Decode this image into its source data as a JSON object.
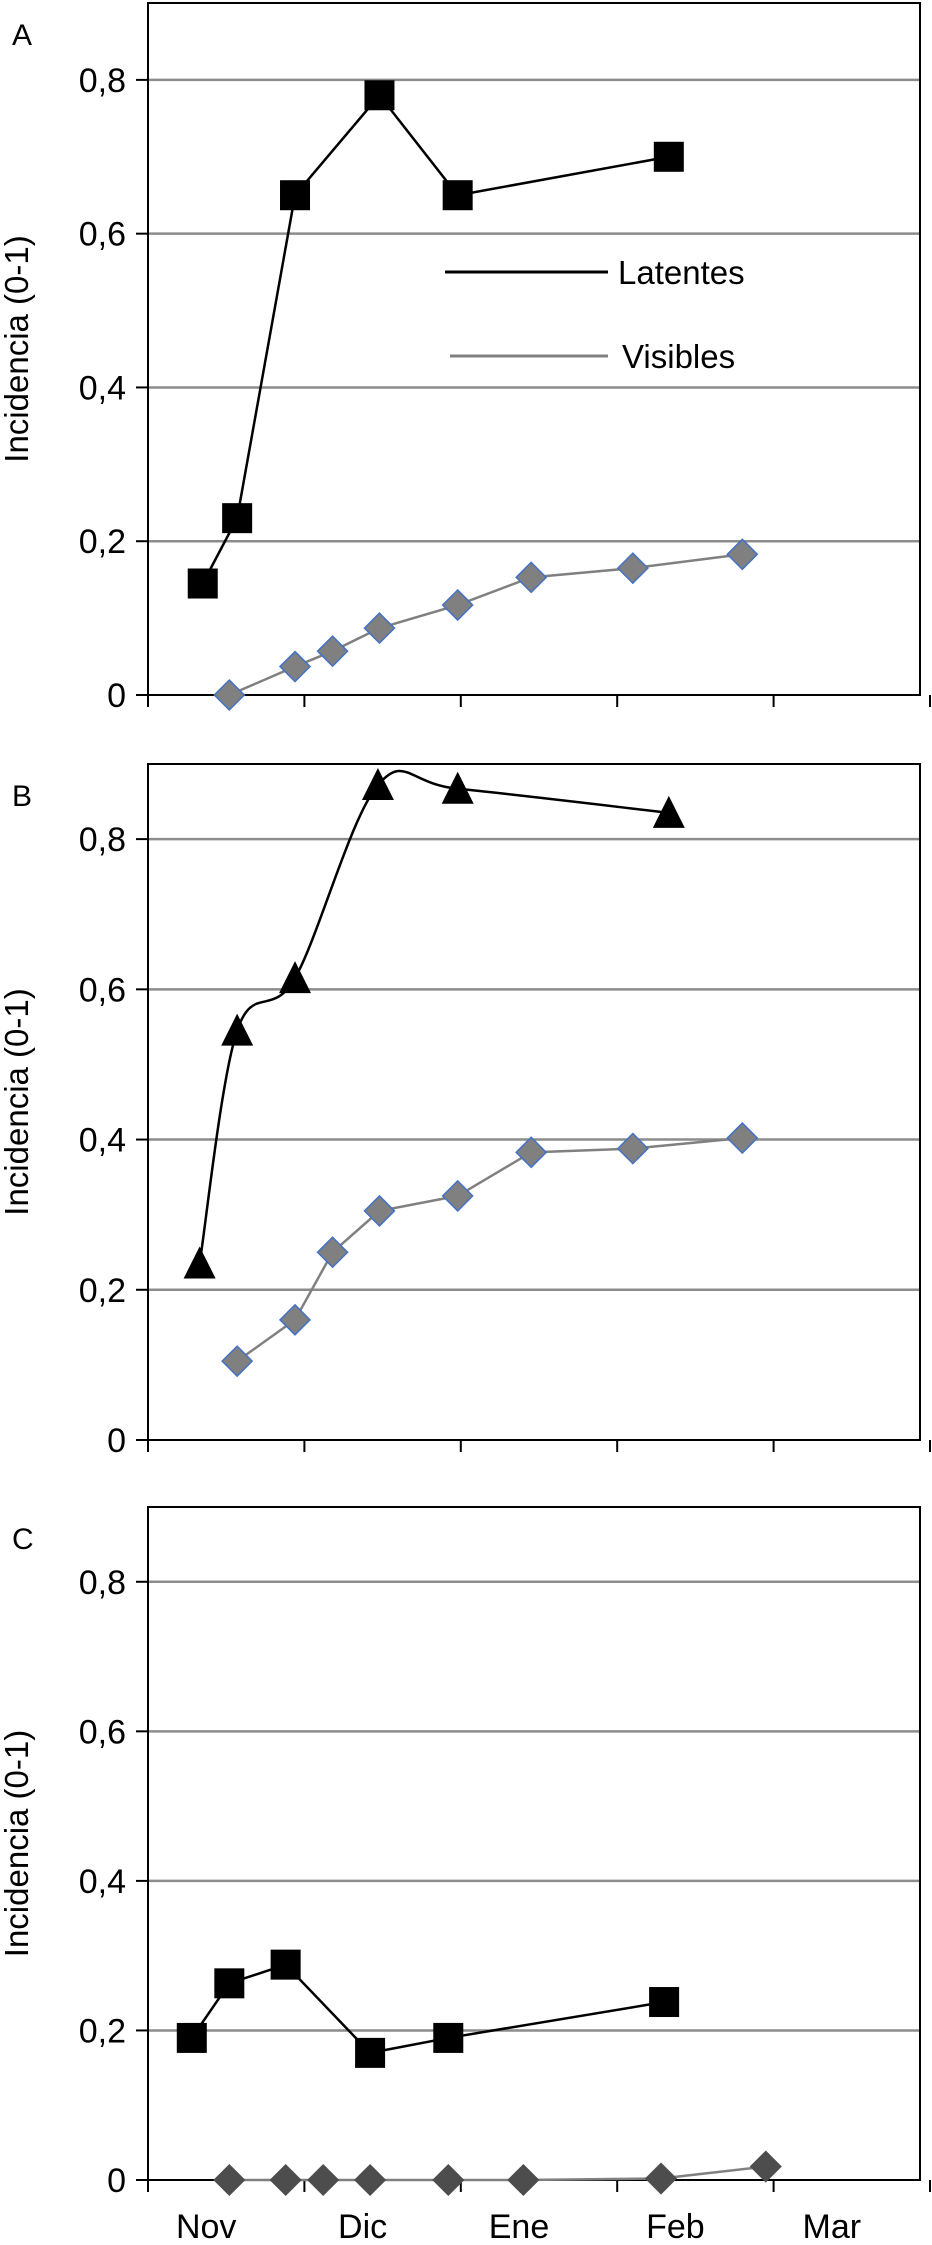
{
  "chart_data": [
    {
      "type": "line",
      "panel_label": "A",
      "ylabel": "Incidencia (0-1)",
      "xlabel": "",
      "x_months": [
        "Nov",
        "Dic",
        "Ene",
        "Feb",
        "Mar"
      ],
      "ylim": [
        0,
        0.9
      ],
      "yticks": [
        "0",
        "0,2",
        "0,4",
        "0,6",
        "0,8"
      ],
      "ytick_values": [
        0,
        0.2,
        0.4,
        0.6,
        0.8
      ],
      "grid": true,
      "legend": {
        "placement": "top-right",
        "entries": [
          "Latentes",
          "Visibles"
        ]
      },
      "series": [
        {
          "name": "Latentes",
          "marker": "square",
          "color": "#000000",
          "smooth": false,
          "points": [
            [
              0.35,
              0.145
            ],
            [
              0.57,
              0.23
            ],
            [
              0.94,
              0.65
            ],
            [
              1.48,
              0.78
            ],
            [
              1.98,
              0.65
            ],
            [
              3.33,
              0.7
            ]
          ]
        },
        {
          "name": "Visibles",
          "marker": "diamond",
          "color": "#808080",
          "smooth": false,
          "points": [
            [
              0.52,
              0.0
            ],
            [
              0.94,
              0.037
            ],
            [
              1.18,
              0.057
            ],
            [
              1.48,
              0.087
            ],
            [
              1.98,
              0.117
            ],
            [
              2.45,
              0.153
            ],
            [
              3.1,
              0.165
            ],
            [
              3.8,
              0.183
            ]
          ]
        }
      ]
    },
    {
      "type": "line",
      "panel_label": "B",
      "ylabel": "Incidencia (0-1)",
      "xlabel": "",
      "x_months": [
        "Nov",
        "Dic",
        "Ene",
        "Feb",
        "Mar"
      ],
      "ylim": [
        0,
        0.9
      ],
      "yticks": [
        "0",
        "0,2",
        "0,4",
        "0,6",
        "0,8"
      ],
      "ytick_values": [
        0,
        0.2,
        0.4,
        0.6,
        0.8
      ],
      "grid": true,
      "series": [
        {
          "name": "",
          "marker": "triangle",
          "color": "#000000",
          "smooth": true,
          "points": [
            [
              0.33,
              0.235
            ],
            [
              0.57,
              0.545
            ],
            [
              0.94,
              0.615
            ],
            [
              1.47,
              0.872
            ],
            [
              1.98,
              0.867
            ],
            [
              3.33,
              0.835
            ]
          ]
        },
        {
          "name": "",
          "marker": "diamond",
          "color": "#808080",
          "smooth": false,
          "points": [
            [
              0.57,
              0.105
            ],
            [
              0.94,
              0.16
            ],
            [
              1.18,
              0.25
            ],
            [
              1.48,
              0.305
            ],
            [
              1.98,
              0.325
            ],
            [
              2.45,
              0.383
            ],
            [
              3.1,
              0.388
            ],
            [
              3.8,
              0.402
            ]
          ]
        }
      ]
    },
    {
      "type": "line",
      "panel_label": "C",
      "ylabel": "Incidencia (0-1)",
      "xlabel": "",
      "x_months": [
        "Nov",
        "Dic",
        "Ene",
        "Feb",
        "Mar"
      ],
      "ylim": [
        0,
        0.9
      ],
      "yticks": [
        "0",
        "0,2",
        "0,4",
        "0,6",
        "0,8"
      ],
      "ytick_values": [
        0,
        0.2,
        0.4,
        0.6,
        0.8
      ],
      "grid": true,
      "series": [
        {
          "name": "",
          "marker": "square",
          "color": "#000000",
          "smooth": false,
          "points": [
            [
              0.28,
              0.19
            ],
            [
              0.52,
              0.263
            ],
            [
              0.88,
              0.288
            ],
            [
              1.42,
              0.17
            ],
            [
              1.92,
              0.19
            ],
            [
              3.3,
              0.238
            ]
          ]
        },
        {
          "name": "",
          "marker": "diamond",
          "color": "#4d4d4d",
          "smooth": false,
          "points": [
            [
              0.52,
              0.0
            ],
            [
              0.88,
              0.0
            ],
            [
              1.12,
              0.0
            ],
            [
              1.42,
              0.0
            ],
            [
              1.92,
              0.0
            ],
            [
              2.4,
              0.0
            ],
            [
              3.28,
              0.002
            ],
            [
              3.95,
              0.018
            ]
          ]
        }
      ]
    }
  ]
}
